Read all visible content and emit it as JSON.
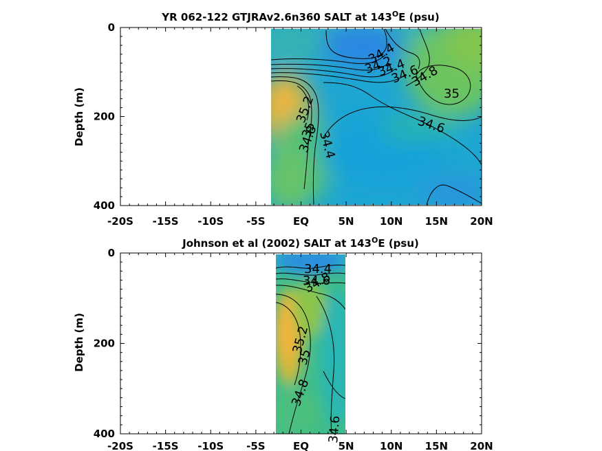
{
  "chart_data": [
    {
      "type": "heatmap",
      "title": "YR 062-122 GTJRAv2.6n360 SALT at 143",
      "title_sup": "O",
      "title_suffix": "E (psu)",
      "ylabel": "Depth (m)",
      "xlim": [
        -20,
        20
      ],
      "ylim": [
        400,
        0
      ],
      "y_reversed": true,
      "x_ticks": [
        -20,
        -15,
        -10,
        -5,
        0,
        5,
        10,
        15,
        20
      ],
      "x_tick_labels": [
        "-20S",
        "-15S",
        "-10S",
        "-5S",
        "EQ",
        "5N",
        "10N",
        "15N",
        "20N"
      ],
      "y_ticks": [
        0,
        200,
        400
      ],
      "y_tick_labels": [
        "0",
        "200",
        "400"
      ],
      "data_extent": {
        "lat": [
          -3,
          20
        ],
        "depth": [
          0,
          400
        ]
      },
      "colormap": [
        "#3a7fd8",
        "#1aa0e0",
        "#23b4b8",
        "#4cc07e",
        "#8ac44c",
        "#c9b83a",
        "#f5b53c"
      ],
      "contour_labels": [
        "34.4",
        "34.2",
        "34.4",
        "34.6",
        "34.8",
        "35",
        "35.2",
        "35",
        "34.8",
        "34.4",
        "34.6"
      ],
      "grid": false
    },
    {
      "type": "heatmap",
      "title": "Johnson et al (2002) SALT at 143",
      "title_sup": "O",
      "title_suffix": "E (psu)",
      "ylabel": "Depth (m)",
      "xlim": [
        -20,
        20
      ],
      "ylim": [
        400,
        0
      ],
      "y_reversed": true,
      "x_ticks": [
        -20,
        -15,
        -10,
        -5,
        0,
        5,
        10,
        15,
        20
      ],
      "x_tick_labels": [
        "-20S",
        "-15S",
        "-10S",
        "-5S",
        "EQ",
        "5N",
        "10N",
        "15N",
        "20N"
      ],
      "y_ticks": [
        0,
        200,
        400
      ],
      "y_tick_labels": [
        "0",
        "200",
        "400"
      ],
      "data_extent": {
        "lat": [
          -2.5,
          5
        ],
        "depth": [
          0,
          400
        ]
      },
      "colormap": [
        "#3a7fd8",
        "#1aa0e0",
        "#23b4b8",
        "#4cc07e",
        "#8ac44c",
        "#c9b83a",
        "#f5b53c"
      ],
      "contour_labels": [
        "34.4",
        "34.6",
        "34.8",
        "35.2",
        "35",
        "34.8",
        "34.6"
      ],
      "grid": false
    }
  ]
}
